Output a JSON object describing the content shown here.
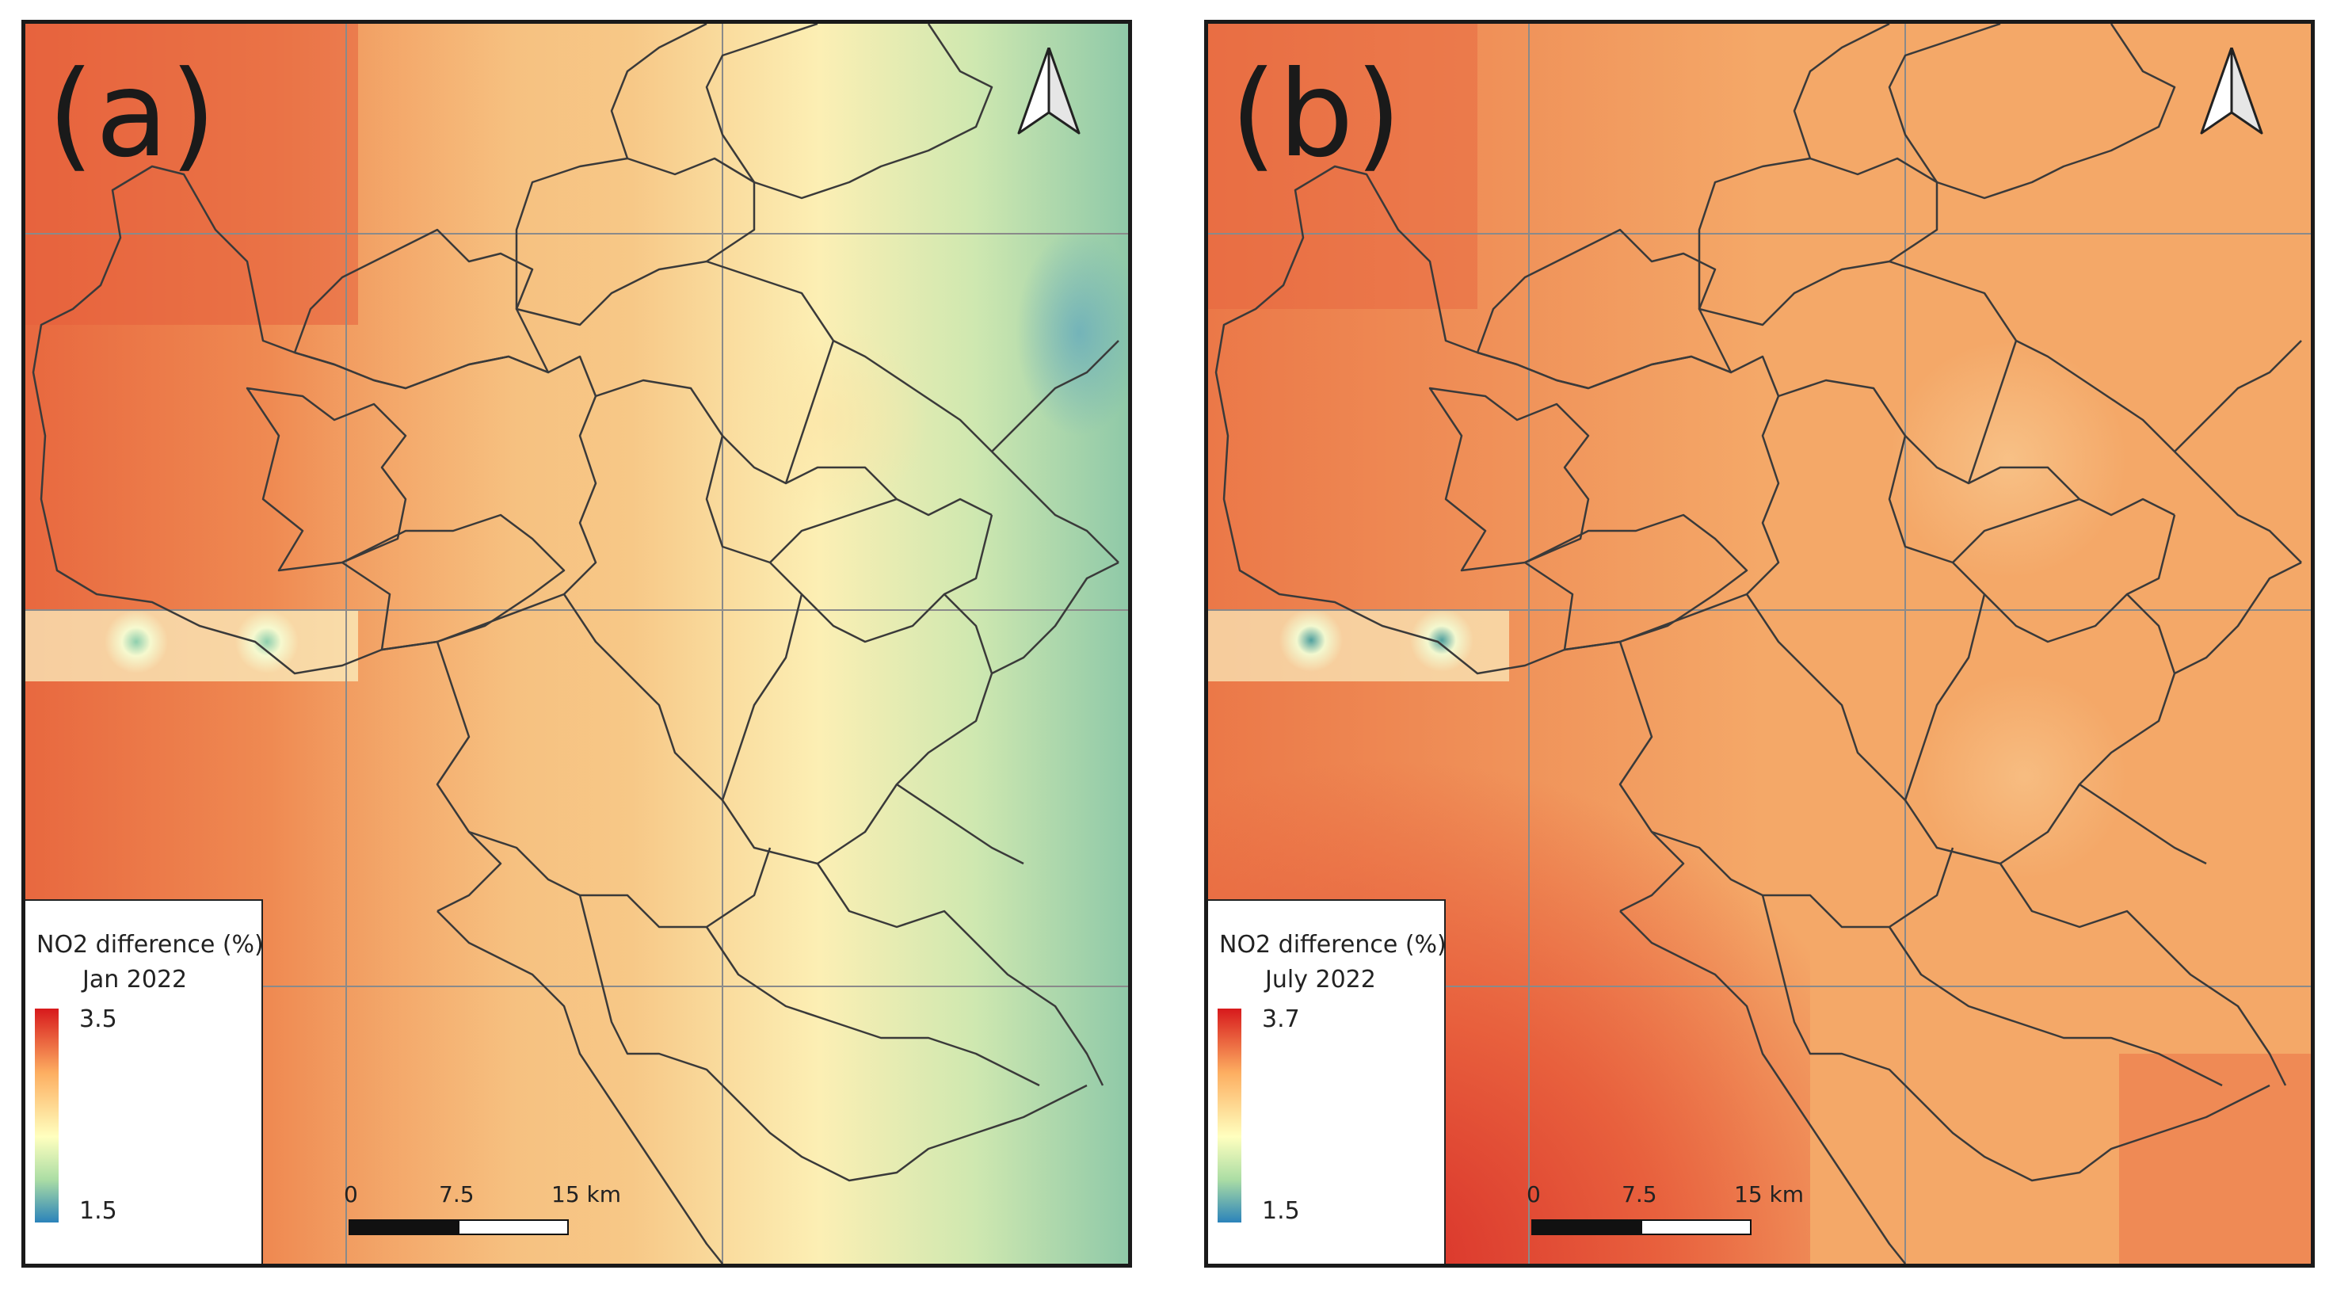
{
  "panels": [
    {
      "label": "(a)",
      "legend": {
        "title": "NO2 difference (%)",
        "period": "Jan 2022",
        "max": "3.5",
        "min": "1.5"
      },
      "scale": {
        "ticks": [
          "0",
          "7.5",
          "15 km"
        ]
      }
    },
    {
      "label": "(b)",
      "legend": {
        "title": "NO2 difference (%)",
        "period": "July 2022",
        "max": "3.7",
        "min": "1.5"
      },
      "scale": {
        "ticks": [
          "0",
          "7.5",
          "15 km"
        ]
      }
    }
  ],
  "colors": {
    "max": "#d7191c",
    "high": "#fdae61",
    "mid": "#ffffbf",
    "low": "#abdda4",
    "min": "#2b83ba",
    "boundary": "#333333",
    "grid": "#888888"
  },
  "icons": [
    "north-arrow-icon"
  ]
}
